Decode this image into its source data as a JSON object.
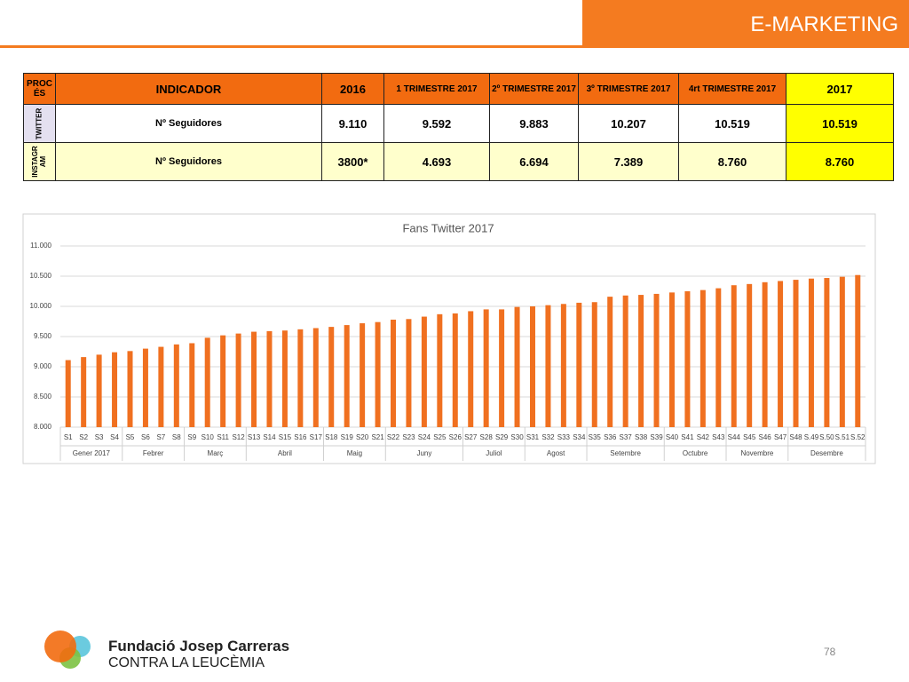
{
  "header": {
    "title": "E-MARKETING"
  },
  "table": {
    "header": [
      "PROC ÉS",
      "INDICADOR",
      "2016",
      "1 TRIMESTRE 2017",
      "2º TRIMESTRE 2017",
      "3º TRIMESTRE 2017",
      "4rt TRIMESTRE 2017",
      "2017"
    ],
    "rows": [
      [
        "TWITTER",
        "Nº Seguidores",
        "9.110",
        "9.592",
        "9.883",
        "10.207",
        "10.519",
        "10.519"
      ],
      [
        "INSTAGR AM",
        "Nº Seguidores",
        "3800*",
        "4.693",
        "6.694",
        "7.389",
        "8.760",
        "8.760"
      ]
    ]
  },
  "chart_data": {
    "type": "bar",
    "title": "Fans Twitter 2017",
    "color": "#f07020",
    "grid": true,
    "categories": [
      "S1",
      "S2",
      "S3",
      "S4",
      "S5",
      "S6",
      "S7",
      "S8",
      "S9",
      "S10",
      "S11",
      "S12",
      "S13",
      "S14",
      "S15",
      "S16",
      "S17",
      "S18",
      "S19",
      "S20",
      "S21",
      "S22",
      "S23",
      "S24",
      "S25",
      "S26",
      "S27",
      "S28",
      "S29",
      "S30",
      "S31",
      "S32",
      "S33",
      "S34",
      "S35",
      "S36",
      "S37",
      "S38",
      "S39",
      "S40",
      "S41",
      "S42",
      "S43",
      "S44",
      "S45",
      "S46",
      "S47",
      "S48",
      "S.49",
      "S.50",
      "S.51",
      "S.52"
    ],
    "values": [
      9110,
      9160,
      9200,
      9240,
      9260,
      9300,
      9330,
      9370,
      9390,
      9480,
      9520,
      9550,
      9580,
      9590,
      9600,
      9620,
      9640,
      9660,
      9690,
      9720,
      9740,
      9780,
      9790,
      9830,
      9870,
      9883,
      9920,
      9950,
      9950,
      9990,
      10000,
      10020,
      10040,
      10060,
      10070,
      10160,
      10180,
      10190,
      10207,
      10230,
      10250,
      10270,
      10300,
      10350,
      10370,
      10400,
      10420,
      10440,
      10460,
      10470,
      10490,
      10519
    ],
    "groups": [
      {
        "label": "Gener 2017",
        "weeks": 4
      },
      {
        "label": "Febrer",
        "weeks": 4
      },
      {
        "label": "Març",
        "weeks": 4
      },
      {
        "label": "Abril",
        "weeks": 5
      },
      {
        "label": "Maig",
        "weeks": 4
      },
      {
        "label": "Juny",
        "weeks": 5
      },
      {
        "label": "Juliol",
        "weeks": 4
      },
      {
        "label": "Agost",
        "weeks": 4
      },
      {
        "label": "Setembre",
        "weeks": 5
      },
      {
        "label": "Octubre",
        "weeks": 4
      },
      {
        "label": "Novembre",
        "weeks": 4
      },
      {
        "label": "Desembre",
        "weeks": 5
      }
    ],
    "ylim": [
      8000,
      11000
    ],
    "yticks": [
      {
        "value": 8000,
        "label": "8.000"
      },
      {
        "value": 8500,
        "label": "8.500"
      },
      {
        "value": 9000,
        "label": "9.000"
      },
      {
        "value": 9500,
        "label": "9.500"
      },
      {
        "value": 10000,
        "label": "10.000"
      },
      {
        "value": 10500,
        "label": "10.500"
      },
      {
        "value": 11000,
        "label": "11.000"
      }
    ]
  },
  "footer": {
    "name": "Fundació Josep Carreras",
    "subtitle": "CONTRA LA LEUCÈMIA",
    "page": "78"
  }
}
